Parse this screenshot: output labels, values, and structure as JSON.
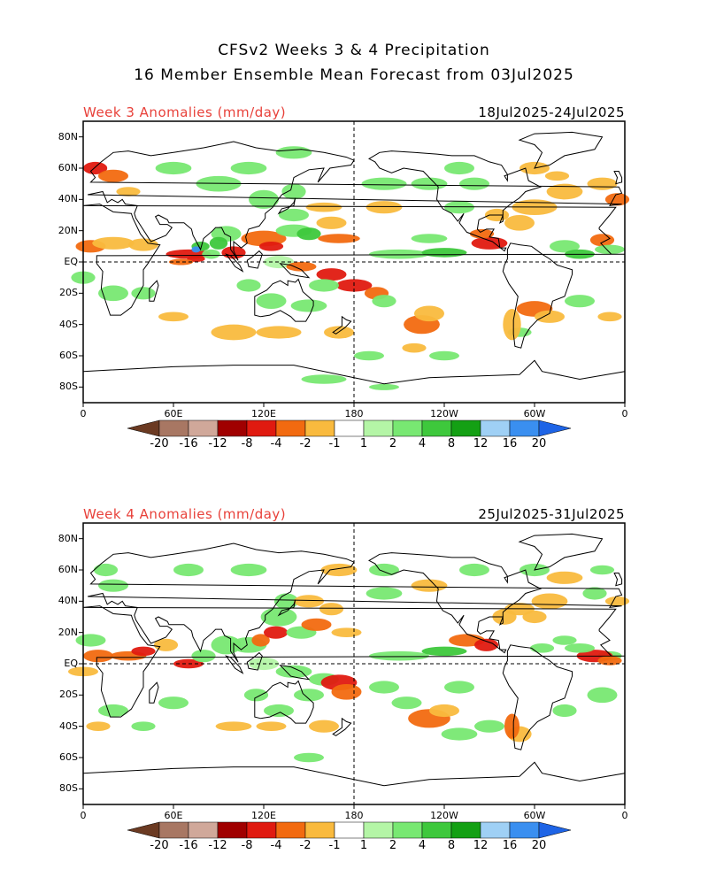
{
  "title_line1": "CFSv2 Weeks 3 & 4 Precipitation",
  "title_line2": "16 Member Ensemble Mean Forecast from 03Jul2025",
  "panels": [
    {
      "label": "Week 3 Anomalies (mm/day)",
      "dates": "18Jul2025-24Jul2025"
    },
    {
      "label": "Week 4 Anomalies (mm/day)",
      "dates": "25Jul2025-31Jul2025"
    }
  ],
  "lat_labels": [
    "80N",
    "60N",
    "40N",
    "20N",
    "EQ",
    "20S",
    "40S",
    "60S",
    "80S"
  ],
  "lon_labels": [
    "0",
    "60E",
    "120E",
    "180",
    "120W",
    "60W",
    "0"
  ],
  "colorbar": {
    "labels": [
      "-20",
      "-16",
      "-12",
      "-8",
      "-4",
      "-2",
      "-1",
      "1",
      "2",
      "4",
      "8",
      "12",
      "16",
      "20"
    ],
    "colors": [
      "#6b3a22",
      "#a87763",
      "#d0a89a",
      "#a00000",
      "#e01a10",
      "#f26a10",
      "#f9ba3e",
      "#ffffff",
      "#b4f5a6",
      "#78e872",
      "#3ec83c",
      "#14a014",
      "#9fd0f5",
      "#3a8ff0",
      "#1e64e6"
    ]
  },
  "colors": {
    "anomaly_label": "#e8413a",
    "coast": "#000000",
    "dashed": "#000000"
  }
}
